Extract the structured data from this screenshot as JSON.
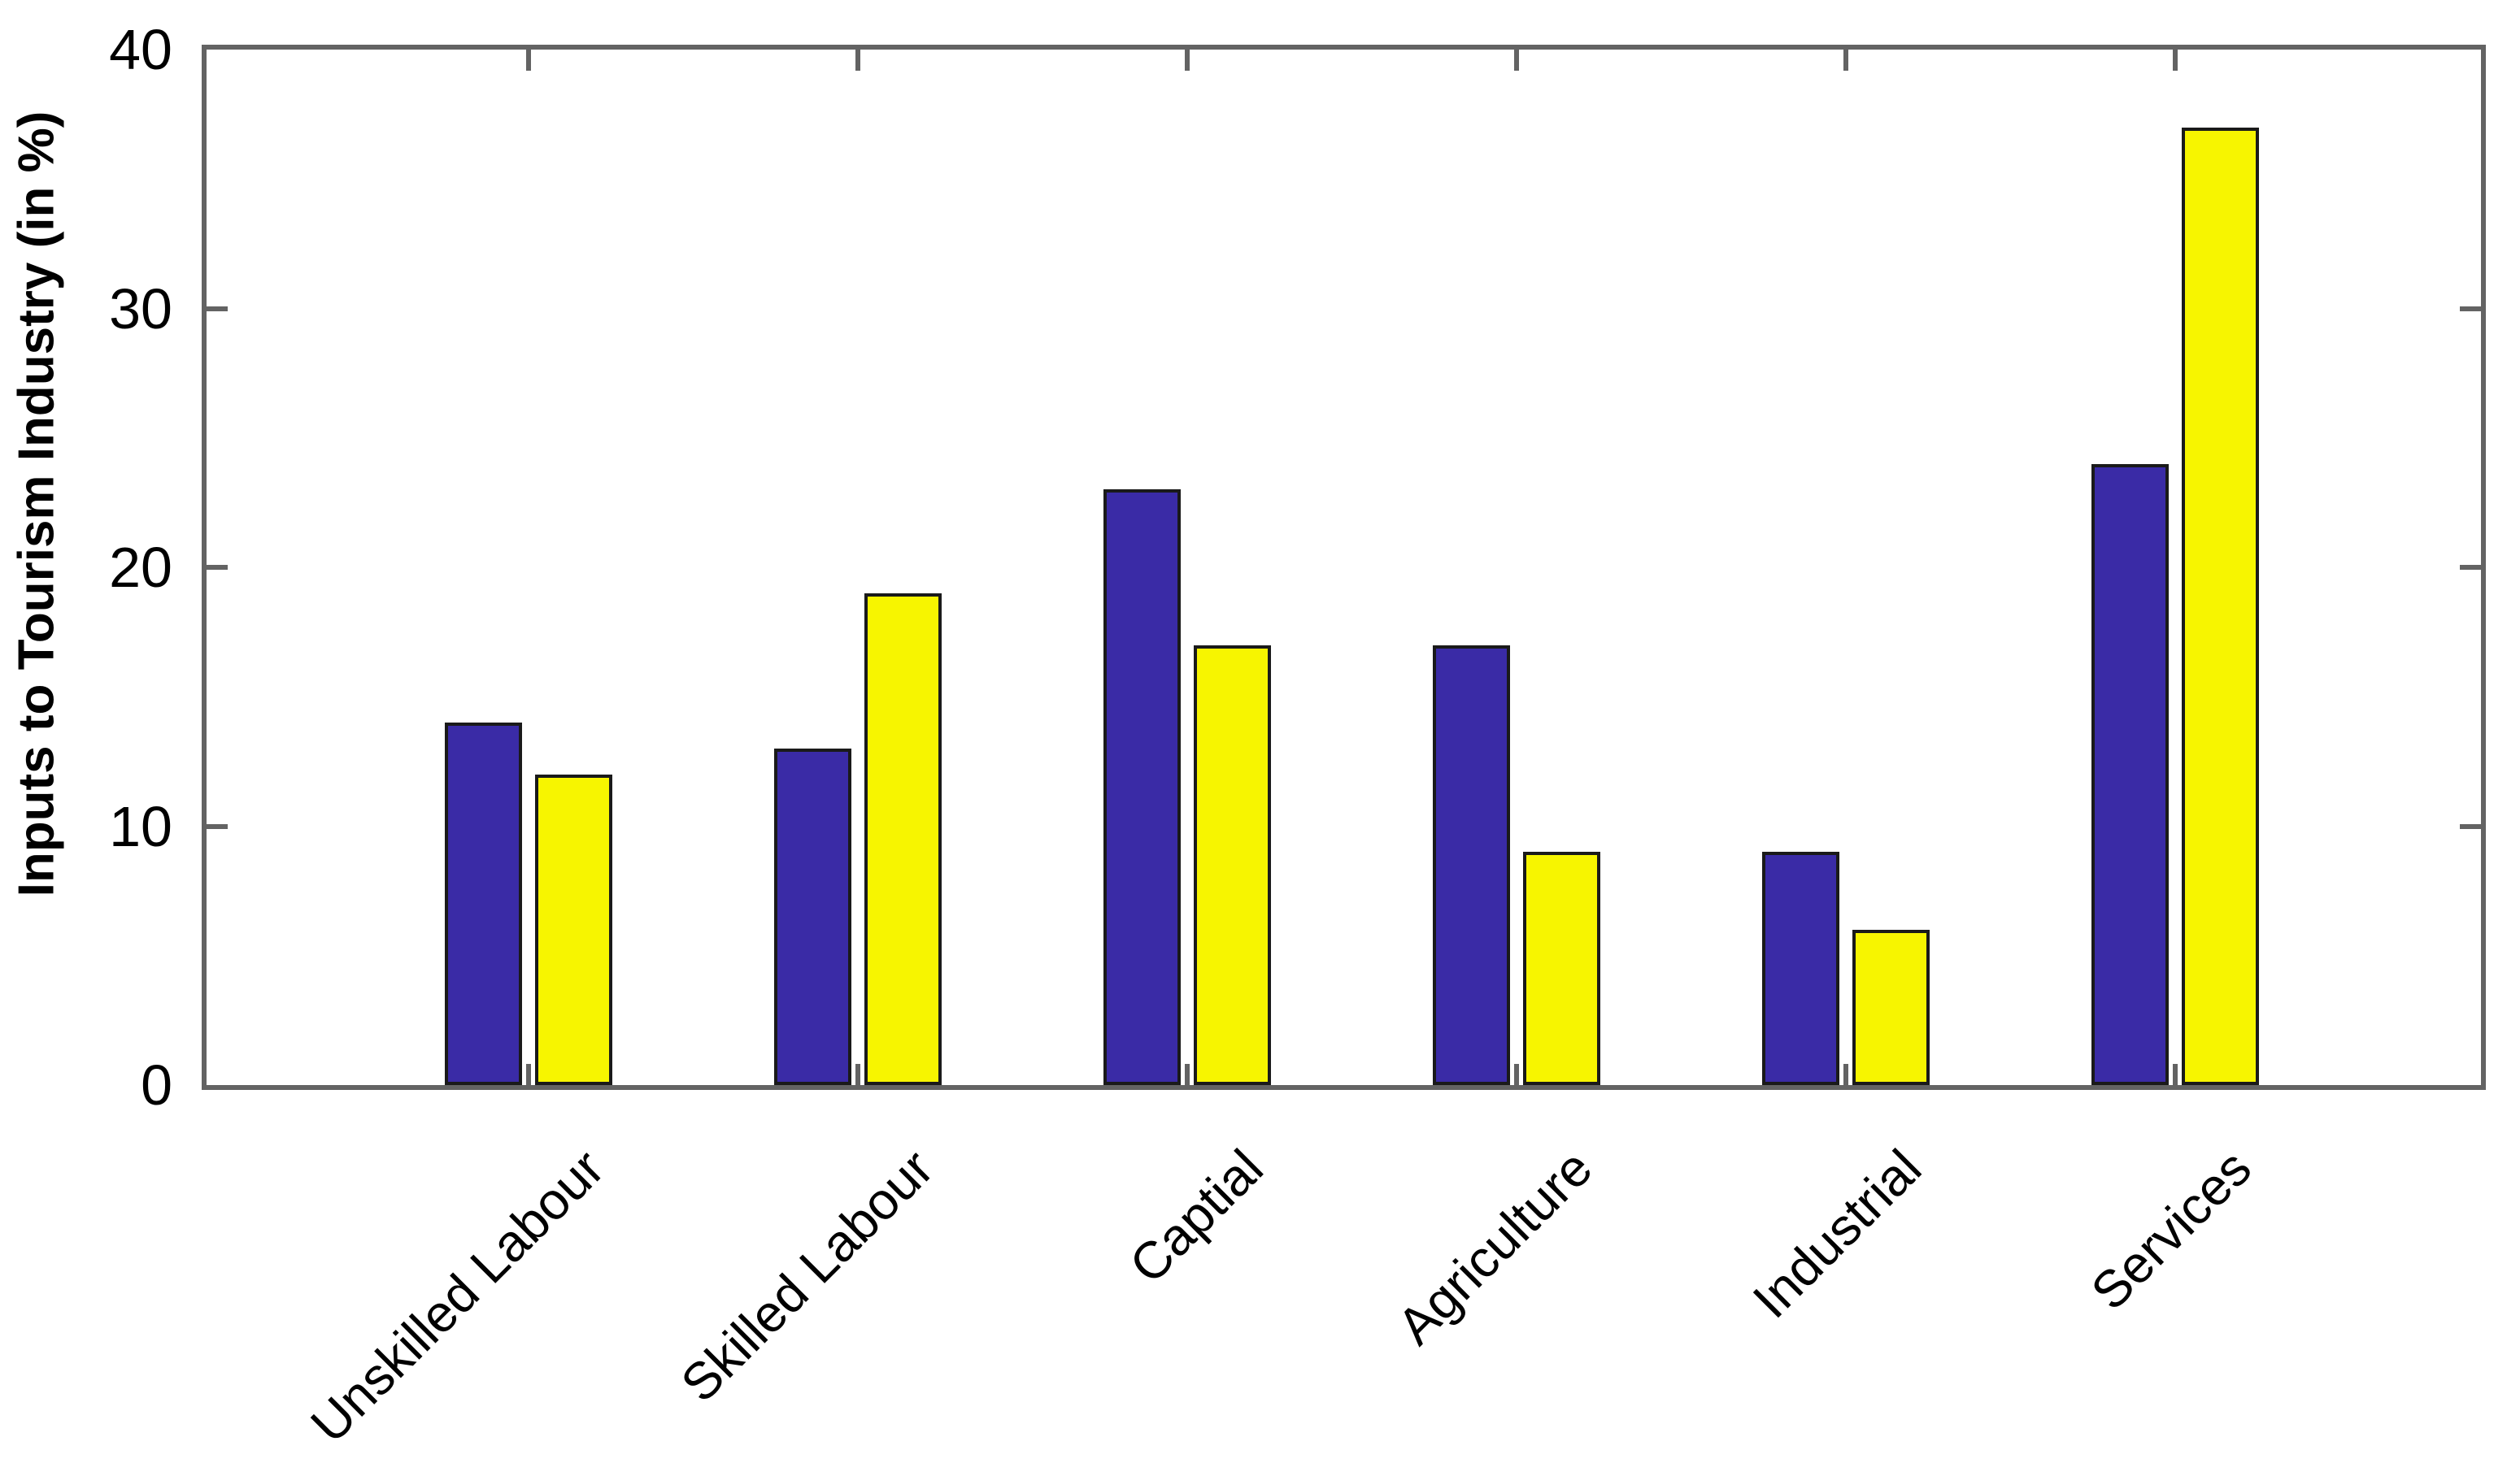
{
  "figure": {
    "background": "#ffffff"
  },
  "chart_data": {
    "type": "bar",
    "categories": [
      "Unskilled Labour",
      "Skilled Labour",
      "Captial",
      "Agriculture",
      "Industrial",
      "Services"
    ],
    "series": [
      {
        "name": "blue-series",
        "color": "#3A2BA6",
        "values": [
          14,
          13,
          23,
          17,
          9,
          24
        ]
      },
      {
        "name": "yellow-series",
        "color": "#F7F500",
        "values": [
          12,
          19,
          17,
          9,
          6,
          37
        ]
      }
    ],
    "title": "",
    "xlabel": "",
    "ylabel": "Inputs to Tourism Industry (in %)",
    "ylim": [
      0,
      40
    ],
    "yticks": [
      0,
      10,
      20,
      30,
      40
    ],
    "grid": false,
    "legend": "none",
    "bar_edge_color": "#1a1a1a",
    "axis_color": "#636363",
    "tick_direction": "in"
  }
}
